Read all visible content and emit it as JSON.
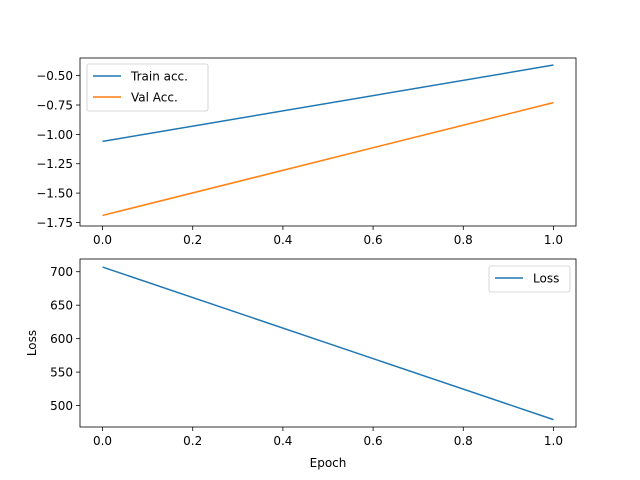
{
  "chart_data": [
    {
      "type": "line",
      "title": "",
      "xlabel": "",
      "ylabel": "",
      "xlim": [
        -0.05,
        1.05
      ],
      "ylim": [
        -1.78,
        -0.35
      ],
      "xticks": [
        0.0,
        0.2,
        0.4,
        0.6,
        0.8,
        1.0
      ],
      "xtick_labels": [
        "0.0",
        "0.2",
        "0.4",
        "0.6",
        "0.8",
        "1.0"
      ],
      "yticks": [
        -1.75,
        -1.5,
        -1.25,
        -1.0,
        -0.75,
        -0.5
      ],
      "ytick_labels": [
        "−1.75",
        "−1.50",
        "−1.25",
        "−1.00",
        "−0.75",
        "−0.50"
      ],
      "grid": false,
      "legend": "top-left",
      "series": [
        {
          "name": "Train acc.",
          "color": "#1f77b4",
          "x": [
            0,
            1
          ],
          "values": [
            -1.06,
            -0.41
          ]
        },
        {
          "name": "Val Acc.",
          "color": "#ff7f0e",
          "x": [
            0,
            1
          ],
          "values": [
            -1.69,
            -0.73
          ]
        }
      ]
    },
    {
      "type": "line",
      "title": "",
      "xlabel": "Epoch",
      "ylabel": "Loss",
      "xlim": [
        -0.05,
        1.05
      ],
      "ylim": [
        468,
        719
      ],
      "xticks": [
        0.0,
        0.2,
        0.4,
        0.6,
        0.8,
        1.0
      ],
      "xtick_labels": [
        "0.0",
        "0.2",
        "0.4",
        "0.6",
        "0.8",
        "1.0"
      ],
      "yticks": [
        500,
        550,
        600,
        650,
        700
      ],
      "ytick_labels": [
        "500",
        "550",
        "600",
        "650",
        "700"
      ],
      "grid": false,
      "legend": "top-right",
      "series": [
        {
          "name": "Loss",
          "color": "#1f77b4",
          "x": [
            0,
            1
          ],
          "values": [
            707,
            479
          ]
        }
      ]
    }
  ]
}
